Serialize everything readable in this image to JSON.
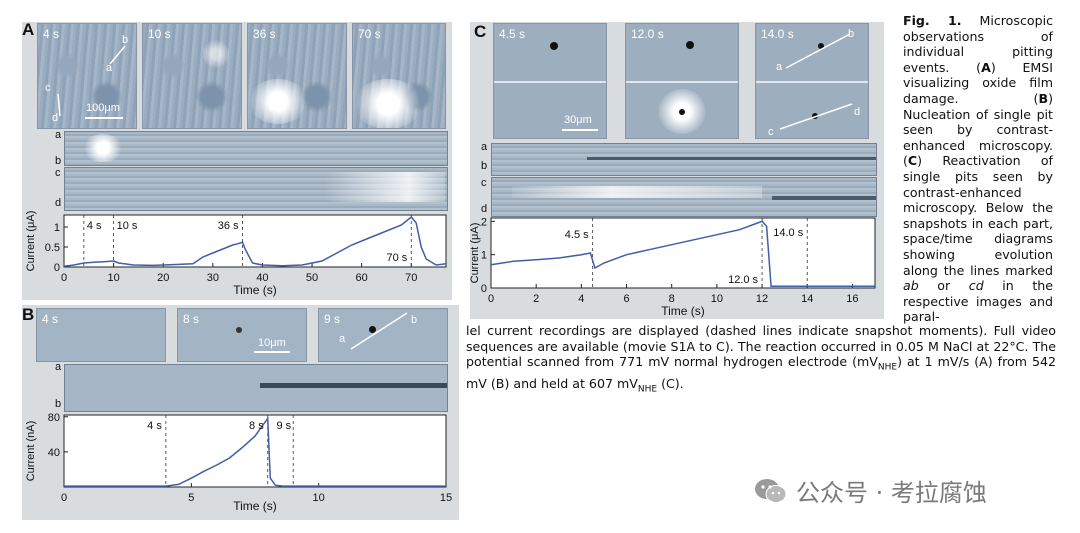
{
  "panels": {
    "A": {
      "label": "A",
      "snapshots": [
        "4 s",
        "10 s",
        "36 s",
        "70 s"
      ],
      "scale_bar": "100μm",
      "line_labels": {
        "a": "a",
        "b": "b",
        "c": "c",
        "d": "d"
      },
      "stripe_labels": [
        "a",
        "b",
        "c",
        "d"
      ]
    },
    "B": {
      "label": "B",
      "snapshots": [
        "4 s",
        "8 s",
        "9 s"
      ],
      "scale_bar": "10μm",
      "line_labels": {
        "a": "a",
        "b": "b"
      },
      "stripe_labels": [
        "a",
        "b"
      ]
    },
    "C": {
      "label": "C",
      "snapshots": [
        "4.5 s",
        "12.0 s",
        "14.0 s"
      ],
      "scale_bar": "30μm",
      "line_labels": {
        "a": "a",
        "b": "b",
        "c": "c",
        "d": "d"
      },
      "stripe_labels": [
        "a",
        "b",
        "c",
        "d"
      ]
    }
  },
  "caption": {
    "right": [
      {
        "text": "Fig. 1.",
        "bold": true
      },
      {
        "text": " Microscopic observations of individual pitting events. (",
        "bold": false
      },
      {
        "text": "A",
        "bold": true
      },
      {
        "text": ") EMSI visualizing oxide film damage. (",
        "bold": false
      },
      {
        "text": "B",
        "bold": true
      },
      {
        "text": ") Nucleation of single pit seen by contrast-enhanced microscopy. (",
        "bold": false
      },
      {
        "text": "C",
        "bold": true
      },
      {
        "text": ") Reactivation of single pits seen by contrast-enhanced microscopy. Below the snapshots in each part, space/time diagrams showing evolution along the lines marked ",
        "bold": false
      },
      {
        "text": "ab",
        "italic": true
      },
      {
        "text": " or ",
        "bold": false
      },
      {
        "text": "cd",
        "italic": true
      },
      {
        "text": " in the respective images and paral-",
        "bold": false
      }
    ],
    "bottom_1": "lel current recordings are displayed (dashed lines indicate snapshot moments). Full video sequences are available (movie S1A to C). The reaction occurred in 0.05 M NaCl at 22°C. The potential scanned from 771 mV normal hydrogen electrode (mV",
    "bottom_sub1": "NHE",
    "bottom_2": ") at 1 mV/s (A) from 542 mV (B) and held at 607 mV",
    "bottom_sub2": "NHE",
    "bottom_3": " (C)."
  },
  "watermark": {
    "text": "公众号 · 考拉腐蚀",
    "icon": "wechat-icon"
  },
  "chart_data": [
    {
      "id": "A",
      "type": "line",
      "xlabel": "Time (s)",
      "ylabel": "Current (μA)",
      "xlim": [
        0,
        77
      ],
      "ylim": [
        0,
        1.3
      ],
      "xticks": [
        0,
        10,
        20,
        30,
        40,
        50,
        60,
        70
      ],
      "yticks": [
        0,
        0.5,
        1
      ],
      "ytick_labels": [
        "0",
        "0.5",
        "1"
      ],
      "markers": [
        {
          "x": 4,
          "label": "4 s"
        },
        {
          "x": 10,
          "label": "10 s"
        },
        {
          "x": 36,
          "label": "36 s"
        },
        {
          "x": 70,
          "label": "70 s"
        }
      ],
      "x": [
        0,
        2,
        4,
        6,
        8,
        10,
        11,
        14,
        18,
        22,
        26,
        28,
        30,
        32,
        34,
        35,
        36,
        36.5,
        38,
        40,
        44,
        48,
        52,
        55,
        58,
        61,
        64,
        66,
        68,
        69.5,
        70,
        71,
        72,
        73,
        75,
        77
      ],
      "y": [
        0.02,
        0.05,
        0.1,
        0.12,
        0.13,
        0.15,
        0.1,
        0.05,
        0.04,
        0.06,
        0.08,
        0.25,
        0.35,
        0.45,
        0.55,
        0.58,
        0.62,
        0.45,
        0.1,
        0.05,
        0.03,
        0.05,
        0.15,
        0.35,
        0.55,
        0.7,
        0.85,
        0.95,
        1.05,
        1.2,
        1.25,
        1.1,
        0.5,
        0.2,
        0.05,
        0.08
      ]
    },
    {
      "id": "B",
      "type": "line",
      "xlabel": "Time (s)",
      "ylabel": "Current (nA)",
      "xlim": [
        0,
        15
      ],
      "ylim": [
        0,
        82
      ],
      "xticks": [
        0,
        5,
        10,
        15
      ],
      "yticks": [
        40,
        80
      ],
      "ytick_labels": [
        "40",
        "80"
      ],
      "markers": [
        {
          "x": 4,
          "label": "4 s"
        },
        {
          "x": 8,
          "label": "8 s"
        },
        {
          "x": 9,
          "label": "9 s"
        }
      ],
      "x": [
        0,
        1,
        2,
        3,
        4,
        4.5,
        5,
        5.5,
        6,
        6.5,
        7,
        7.5,
        7.8,
        8.0,
        8.1,
        8.3,
        8.6,
        9,
        10,
        11,
        12,
        13,
        14,
        15
      ],
      "y": [
        1,
        1,
        1,
        1,
        1,
        3,
        10,
        18,
        25,
        33,
        45,
        58,
        70,
        78,
        10,
        2,
        1,
        1,
        1,
        1,
        1,
        1,
        1,
        1
      ]
    },
    {
      "id": "C",
      "type": "line",
      "xlabel": "Time (s)",
      "ylabel": "Current (μA)",
      "xlim": [
        0,
        17
      ],
      "ylim": [
        0,
        2.1
      ],
      "xticks": [
        0,
        2,
        4,
        6,
        8,
        10,
        12,
        14,
        16
      ],
      "yticks": [
        0,
        1,
        2
      ],
      "ytick_labels": [
        "0",
        "1",
        "2"
      ],
      "markers": [
        {
          "x": 4.5,
          "label": "4.5 s"
        },
        {
          "x": 12.0,
          "label": "12.0 s"
        },
        {
          "x": 14.0,
          "label": "14.0 s"
        }
      ],
      "x": [
        0,
        0.5,
        1,
        2,
        3,
        4,
        4.4,
        4.6,
        5,
        6,
        7,
        8,
        9,
        10,
        11,
        11.8,
        12.0,
        12.2,
        12.4,
        13,
        14,
        15,
        16,
        17
      ],
      "y": [
        0.7,
        0.75,
        0.8,
        0.85,
        0.9,
        1.0,
        1.05,
        0.6,
        0.75,
        1.0,
        1.15,
        1.3,
        1.45,
        1.6,
        1.75,
        1.95,
        2.0,
        1.85,
        0.05,
        0.05,
        0.05,
        0.05,
        0.05,
        0.05
      ]
    }
  ]
}
